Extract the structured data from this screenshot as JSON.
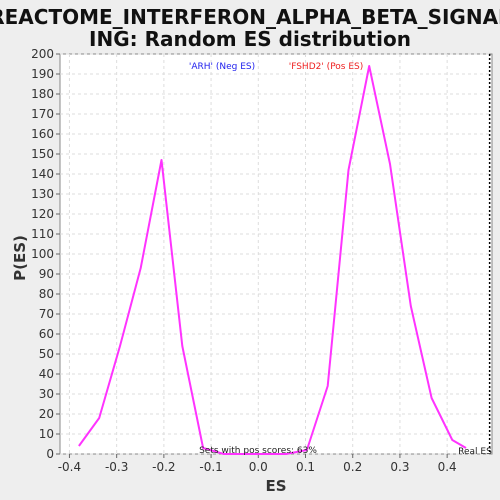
{
  "chart_data": {
    "type": "line",
    "title_lines": [
      "REACTOME_INTERFERON_ALPHA_BETA_SIGNAL",
      "ING: Random ES distribution"
    ],
    "xlabel": "ES",
    "ylabel": "P(ES)",
    "xlim": [
      -0.42,
      0.495
    ],
    "ylim": [
      0,
      200
    ],
    "x_ticks": [
      -0.4,
      -0.3,
      -0.2,
      -0.1,
      0.0,
      0.1,
      0.2,
      0.3,
      0.4
    ],
    "x_tick_labels": [
      "-0.4",
      "-0.3",
      "-0.2",
      "-0.1",
      "0.0",
      "0.1",
      "0.2",
      "0.3",
      "0.4"
    ],
    "y_ticks": [
      0,
      10,
      20,
      30,
      40,
      50,
      60,
      70,
      80,
      90,
      100,
      110,
      120,
      130,
      140,
      150,
      160,
      170,
      180,
      190,
      200
    ],
    "grid": true,
    "series": [
      {
        "color": "#ff33ff",
        "x": [
          -0.38,
          -0.337,
          -0.293,
          -0.249,
          -0.205,
          -0.161,
          -0.117,
          -0.073,
          -0.029,
          0.015,
          0.059,
          0.103,
          0.147,
          0.191,
          0.235,
          0.279,
          0.323,
          0.367,
          0.411,
          0.44
        ],
        "y": [
          4,
          18,
          54,
          93,
          147,
          54,
          3,
          0,
          0,
          0,
          0,
          2,
          34,
          142,
          194,
          145,
          74,
          28,
          7,
          3
        ]
      }
    ],
    "real_es_x": 0.49,
    "real_es_label": "Real ES",
    "legend": [
      {
        "text": "'ARH' (Neg ES)",
        "color": "#2222ee"
      },
      {
        "text": "'FSHD2' (Pos ES)",
        "color": "#ee2222"
      }
    ],
    "annotation": "Sets with pos scores: 63%"
  }
}
